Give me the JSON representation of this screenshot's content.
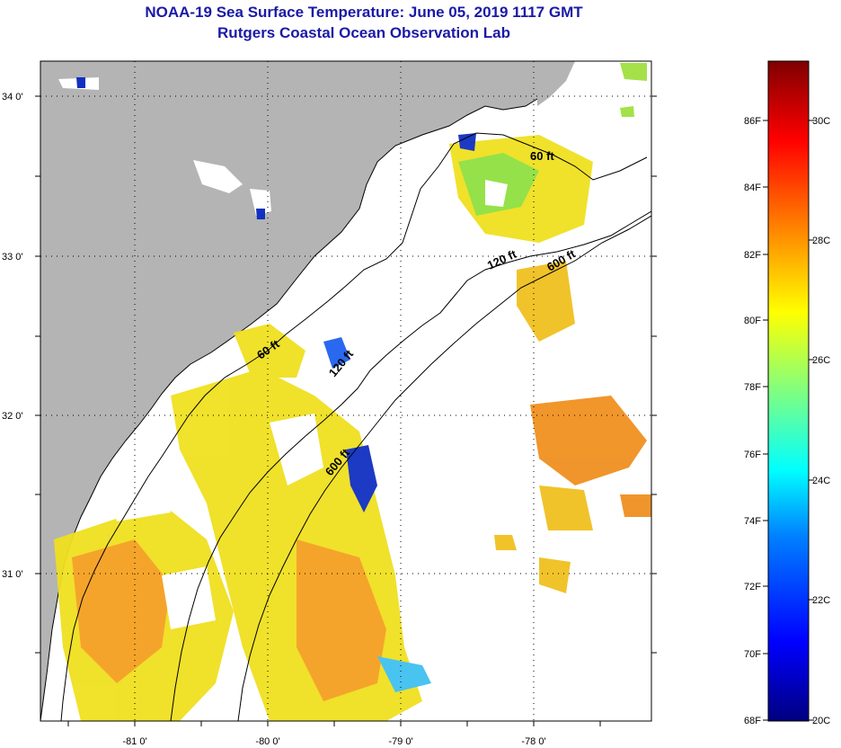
{
  "title": "NOAA-19 Sea Surface Temperature:  June 05, 2019 1117 GMT",
  "subtitle": "Rutgers Coastal Ocean Observation Lab",
  "map": {
    "lat_labels": [
      "34 0'",
      "33 0'",
      "32 0'",
      "31 0'"
    ],
    "lon_labels": [
      "-81 0'",
      "-80 0'",
      "-79 0'",
      "-78 0'"
    ],
    "land_color": "#b4b4b4",
    "ocean_color": "#ffffff",
    "isobaths": [
      {
        "label": "60 ft",
        "depth_ft": 60
      },
      {
        "label": "60 ft",
        "depth_ft": 60
      },
      {
        "label": "120 ft",
        "depth_ft": 120
      },
      {
        "label": "120 ft",
        "depth_ft": 120
      },
      {
        "label": "600 ft",
        "depth_ft": 600
      },
      {
        "label": "600 ft",
        "depth_ft": 600
      }
    ]
  },
  "colorbar": {
    "fahrenheit_labels": [
      "86F",
      "84F",
      "82F",
      "80F",
      "78F",
      "76F",
      "74F",
      "72F",
      "70F",
      "68F"
    ],
    "celsius_labels": [
      "30C",
      "28C",
      "26C",
      "24C",
      "22C",
      "20C"
    ],
    "range_f": [
      68,
      88
    ],
    "range_c": [
      20,
      31
    ],
    "colors": [
      "#800000",
      "#ff0000",
      "#ff8000",
      "#ffff00",
      "#80ff80",
      "#00ffff",
      "#0080ff",
      "#0000ff",
      "#000080"
    ]
  }
}
